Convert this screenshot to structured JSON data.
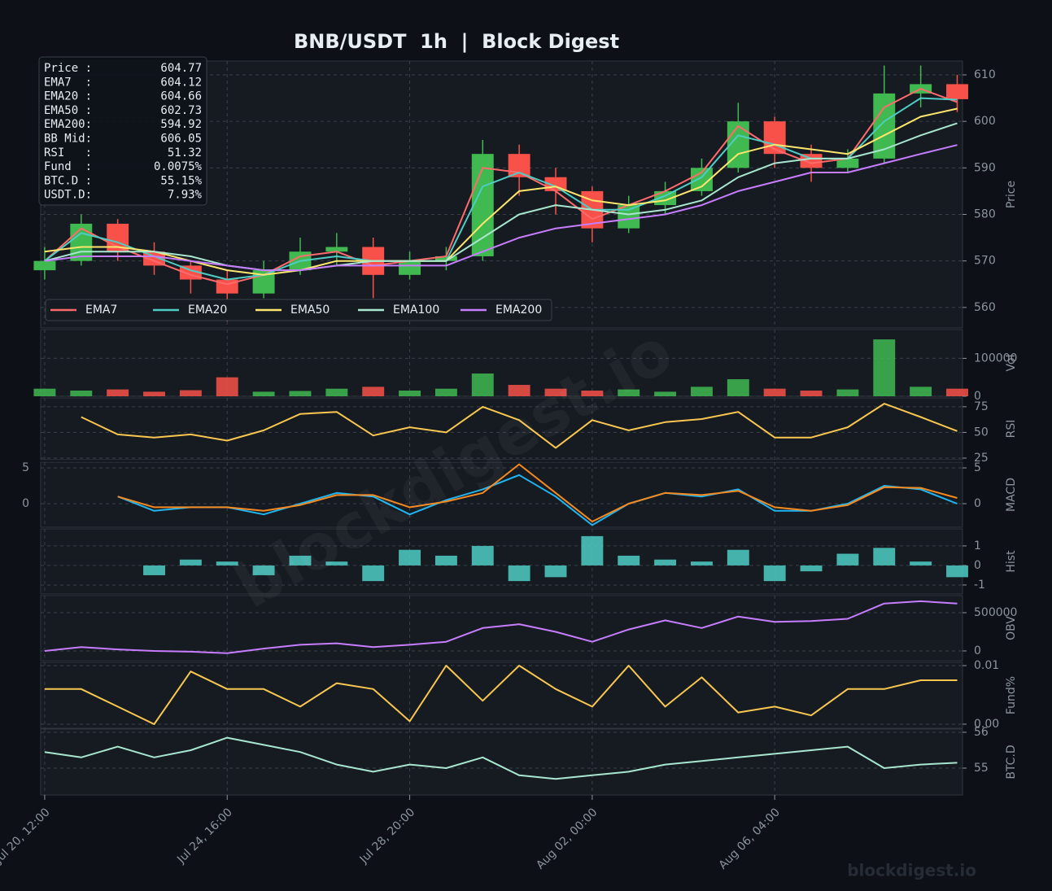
{
  "chart_data": {
    "type": "multi_panel",
    "title": "BNB/USDT  1h  |  Block Digest",
    "x": [
      0,
      20,
      40,
      60,
      80,
      100,
      120,
      140,
      160,
      180,
      200,
      220,
      240,
      260,
      280,
      300,
      320,
      340,
      360,
      380,
      400,
      420,
      440,
      460,
      480,
      500
    ],
    "xlim": [
      -2.2,
      502.9
    ],
    "xticks": [
      {
        "value": 0,
        "label": "Jul 20, 12:00"
      },
      {
        "value": 100,
        "label": "Jul 24, 16:00"
      },
      {
        "value": 200,
        "label": "Jul 28, 20:00"
      },
      {
        "value": 300,
        "label": "Aug 02, 00:00"
      },
      {
        "value": 400,
        "label": "Aug 06, 04:00"
      }
    ],
    "grid": true,
    "panels": [
      {
        "type": "candlestick",
        "y_label": "Price",
        "ylim": [
          555.6,
          612.97
        ],
        "yticks": [
          560,
          570,
          580,
          590,
          600,
          610
        ],
        "up_color": "#3fb950",
        "down_color": "#f85149",
        "legend": "lower left",
        "open": [
          568,
          570,
          578,
          572,
          569,
          566,
          563,
          568,
          572,
          573,
          567,
          570,
          571,
          593,
          588,
          585,
          577,
          582,
          585,
          590,
          600,
          593,
          590,
          592,
          606,
          608
        ],
        "high": [
          573,
          580,
          579,
          574,
          570,
          568,
          570,
          575,
          576,
          575,
          572,
          573,
          596,
          595,
          590,
          586,
          584,
          587,
          592,
          604,
          601,
          595,
          594,
          612,
          612,
          610
        ],
        "low": [
          566,
          569,
          570,
          567,
          563,
          557,
          562,
          567,
          569,
          562,
          566,
          568,
          570,
          584,
          580,
          574,
          576,
          580,
          584,
          589,
          590,
          587,
          589,
          591,
          603,
          602
        ],
        "close": [
          570,
          578,
          572,
          569,
          566,
          563,
          568,
          572,
          573,
          567,
          570,
          571,
          593,
          588,
          585,
          577,
          582,
          585,
          590,
          600,
          593,
          590,
          592,
          606,
          608,
          604.77
        ],
        "series": [
          {
            "name": "EMA7",
            "color": "#ff6b6b",
            "values": [
              570,
              577,
              573,
              570,
              567,
              565,
              567,
              571,
              572,
              569,
              570,
              571,
              590,
              589,
              585,
              579,
              582,
              585,
              589,
              599,
              594,
              591,
              592,
              603,
              607,
              604.12
            ]
          },
          {
            "name": "EMA20",
            "color": "#4ecdc4",
            "values": [
              570,
              576,
              574,
              571,
              568,
              566,
              567,
              570,
              571,
              570,
              570,
              570,
              586,
              589,
              586,
              581,
              581,
              584,
              588,
              597,
              595,
              592,
              592,
              600,
              605,
              604.66
            ]
          },
          {
            "name": "EMA50",
            "color": "#ffe66d",
            "values": [
              572,
              573,
              573,
              572,
              570,
              568,
              567,
              568,
              570,
              570,
              570,
              570,
              578,
              585,
              586,
              583,
              582,
              583,
              586,
              593,
              595,
              594,
              593,
              597,
              601,
              602.73
            ]
          },
          {
            "name": "EMA100",
            "color": "#a8e6cf",
            "values": [
              570,
              572,
              572,
              572,
              571,
              569,
              568,
              568,
              569,
              570,
              570,
              570,
              575,
              580,
              582,
              581,
              580,
              581,
              583,
              588,
              591,
              592,
              592,
              594,
              597,
              599.6
            ]
          },
          {
            "name": "EMA200",
            "color": "#c77dff",
            "values": [
              570,
              571,
              571,
              571,
              570,
              569,
              568,
              568,
              569,
              569,
              569,
              569,
              572,
              575,
              577,
              578,
              579,
              580,
              582,
              585,
              587,
              589,
              589,
              591,
              593,
              594.92
            ]
          }
        ]
      },
      {
        "type": "bar",
        "y_label": "Vol",
        "ylim": [
          0,
          176000
        ],
        "yticks": [
          0,
          100000
        ],
        "values": [
          20000,
          15000,
          18000,
          12000,
          16000,
          50000,
          12000,
          14000,
          20000,
          25000,
          15000,
          20000,
          60000,
          30000,
          20000,
          15000,
          18000,
          12000,
          25000,
          45000,
          20000,
          15000,
          18000,
          150000,
          25000,
          20000
        ]
      },
      {
        "type": "line",
        "y_label": "RSI",
        "ylim": [
          23.4,
          83.6
        ],
        "yticks": [
          25,
          50,
          75
        ],
        "series": [
          {
            "color": "#f9c74f",
            "values": [
              null,
              65,
              48,
              45,
              48,
              42,
              52,
              68,
              70,
              47,
              55,
              50,
              75,
              62,
              35,
              62,
              52,
              60,
              63,
              70,
              45,
              45,
              55,
              78,
              65,
              51.32
            ]
          }
        ]
      },
      {
        "type": "line",
        "y_label": "MACD",
        "ylim": [
          -3.3,
          5.8
        ],
        "yticks": [
          0,
          5
        ],
        "left_axis": true,
        "series": [
          {
            "color": "#1fb5f0",
            "values": [
              null,
              null,
              1,
              -1,
              -0.5,
              -0.5,
              -1.5,
              0,
              1.5,
              1,
              -1.5,
              0.5,
              2,
              4,
              1,
              -3,
              0,
              1.5,
              1,
              2,
              -1,
              -1,
              0,
              2.5,
              2,
              0
            ]
          },
          {
            "color": "#f5891f",
            "values": [
              null,
              null,
              1,
              -0.5,
              -0.5,
              -0.5,
              -1,
              -0.2,
              1.2,
              1.2,
              -0.5,
              0.3,
              1.5,
              5.5,
              1.5,
              -2.5,
              0,
              1.5,
              1.2,
              1.8,
              -0.5,
              -1,
              -0.2,
              2.3,
              2.2,
              0.8
            ]
          }
        ]
      },
      {
        "type": "bar",
        "y_label": "Hist",
        "ylim": [
          -1.46,
          1.87
        ],
        "yticks": [
          -1,
          0,
          1
        ],
        "color": "#4ecdc4",
        "values": [
          null,
          null,
          null,
          -0.5,
          0.3,
          0.2,
          -0.5,
          0.5,
          0.2,
          -0.8,
          0.8,
          0.5,
          1,
          -0.8,
          -0.6,
          1.5,
          0.5,
          0.3,
          0.2,
          0.8,
          -0.8,
          -0.3,
          0.6,
          0.9,
          0.2,
          -0.6
        ]
      },
      {
        "type": "line",
        "y_label": "OBV",
        "ylim": [
          -128000,
          723000
        ],
        "yticks": [
          0,
          500000
        ],
        "series": [
          {
            "color": "#c77dff",
            "values": [
              0,
              50000,
              20000,
              0,
              -10000,
              -30000,
              30000,
              80000,
              100000,
              50000,
              80000,
              120000,
              300000,
              350000,
              250000,
              120000,
              280000,
              400000,
              300000,
              450000,
              380000,
              390000,
              420000,
              620000,
              650000,
              620000
            ]
          }
        ]
      },
      {
        "type": "line",
        "y_label": "Fund%",
        "ylim": [
          -0.0007,
          0.01056
        ],
        "yticks": [
          {
            "value": 0,
            "label": "0.00"
          },
          0.01
        ],
        "series": [
          {
            "color": "#f9c74f",
            "values": [
              0.006,
              0.006,
              0.003,
              0,
              0.009,
              0.006,
              0.006,
              0.003,
              0.007,
              0.006,
              0.0005,
              0.01,
              0.004,
              0.01,
              0.006,
              0.003,
              0.01,
              0.003,
              0.008,
              0.002,
              0.003,
              0.0015,
              0.006,
              0.006,
              0.0075,
              0.0075
            ]
          }
        ]
      },
      {
        "type": "line",
        "y_label": "BTC.D",
        "ylim": [
          54.25,
          56.09
        ],
        "yticks": [
          55,
          56
        ],
        "series": [
          {
            "color": "#a8e6cf",
            "values": [
              55.45,
              55.3,
              55.6,
              55.3,
              55.5,
              55.85,
              55.65,
              55.45,
              55.1,
              54.9,
              55.1,
              55.0,
              55.3,
              54.8,
              54.7,
              54.8,
              54.9,
              55.1,
              55.2,
              55.3,
              55.4,
              55.5,
              55.6,
              55.0,
              55.1,
              55.15
            ]
          }
        ]
      }
    ]
  },
  "info_box": [
    {
      "label": "Price :",
      "value": "604.77"
    },
    {
      "label": "EMA7  :",
      "value": "604.12"
    },
    {
      "label": "EMA20 :",
      "value": "604.66"
    },
    {
      "label": "EMA50 :",
      "value": "602.73"
    },
    {
      "label": "EMA200:",
      "value": "594.92"
    },
    {
      "label": "BB Mid:",
      "value": "606.05"
    },
    {
      "label": "RSI   :",
      "value": "51.32"
    },
    {
      "label": "Fund  :",
      "value": "0.0075%"
    },
    {
      "label": "BTC.D :",
      "value": "55.15%"
    },
    {
      "label": "USDT.D:",
      "value": "7.93%"
    }
  ],
  "watermark": "blockdigest.io"
}
